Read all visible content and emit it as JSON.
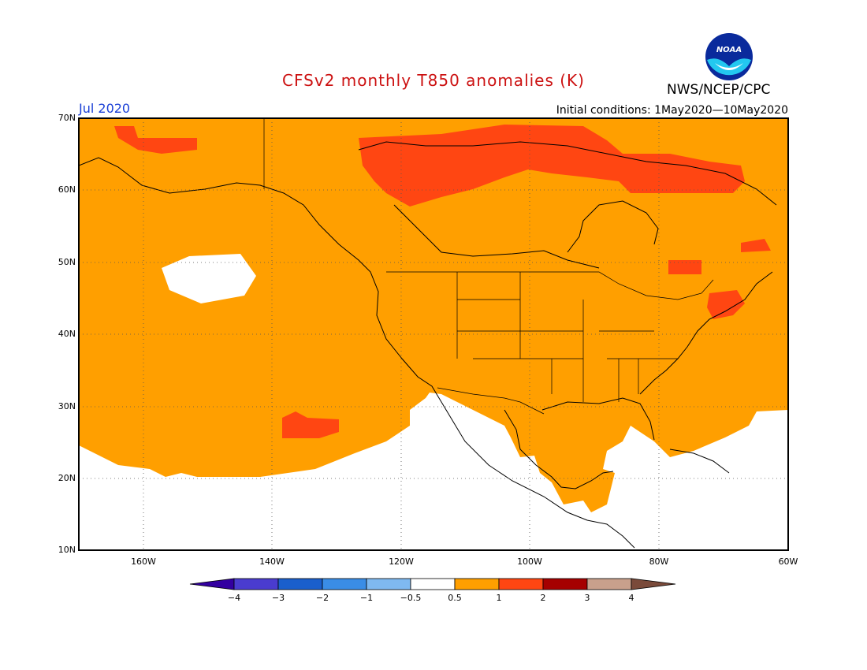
{
  "header": {
    "title": "CFSv2 monthly T850 anomalies (K)",
    "period": "Jul 2020",
    "initial_conditions": "Initial conditions: 1May2020—10May2020",
    "agency": "NWS/NCEP/CPC",
    "logo_text": "NOAA"
  },
  "colors": {
    "title": "#cc1111",
    "period": "#1a3fd6",
    "neutral": "#ffffff",
    "warm_0_5_1": "#ff9f00",
    "warm_1_2": "#ff4612",
    "warm_2_3": "#a50000",
    "warm_3_4": "#c8a08c",
    "cold_lt_m4": "#2a00a0"
  },
  "axes": {
    "lat_labels": [
      "70N",
      "60N",
      "50N",
      "40N",
      "30N",
      "20N",
      "10N"
    ],
    "lon_labels": [
      "160W",
      "140W",
      "120W",
      "100W",
      "80W",
      "60W"
    ]
  },
  "colorbar": {
    "labels": [
      "−4",
      "−3",
      "−2",
      "−1",
      "−0.5",
      "0.5",
      "1",
      "2",
      "3",
      "4"
    ],
    "colors": [
      "#3300a0",
      "#4a3ccf",
      "#1a5fcc",
      "#3a8de6",
      "#7fb9f0",
      "#ffffff",
      "#ff9f00",
      "#ff4612",
      "#a50000",
      "#c8a08c",
      "#7a4a3a"
    ]
  }
}
